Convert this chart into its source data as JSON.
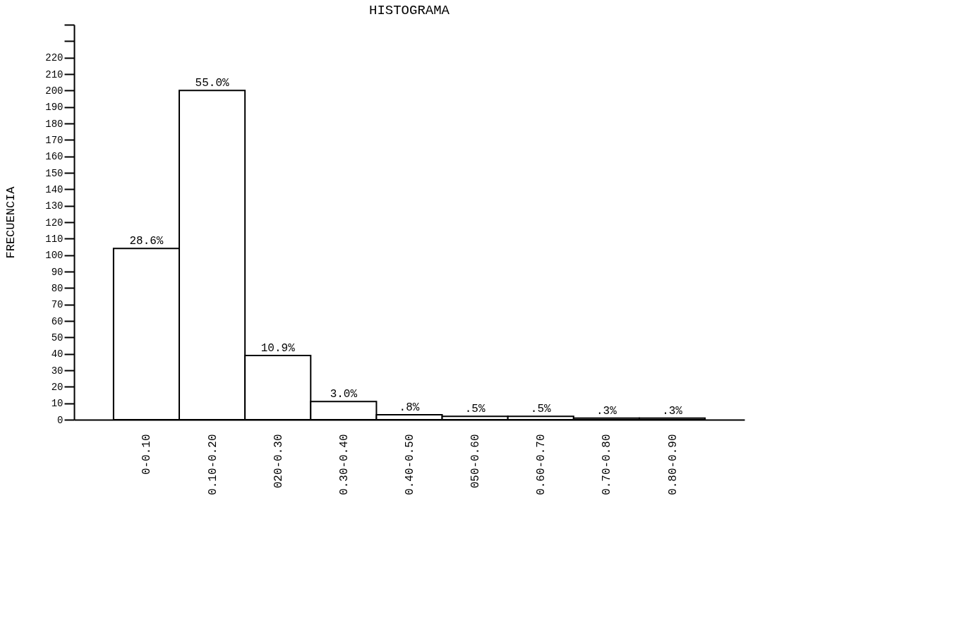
{
  "chart_data": {
    "type": "bar",
    "title": "HISTOGRAMA",
    "ylabel": "FRECUENCIA",
    "categories": [
      "0-0.10",
      "0.10-0.20",
      "020-0.30",
      "0.30-0.40",
      "0.40-0.50",
      "050-0.60",
      "0.60-0.70",
      "0.70-0.80",
      "0.80-0.90"
    ],
    "values": [
      104,
      200,
      39,
      11,
      3,
      2,
      2,
      1,
      1
    ],
    "annotations": [
      {
        "text": "28.6%",
        "x": "0-0.10",
        "y": 104
      },
      {
        "text": "55.0%",
        "x": "0.10-0.20",
        "y": 200
      },
      {
        "text": "10.9%",
        "x": "020-0.30",
        "y": 39
      },
      {
        "text": "3.0%",
        "x": "0.30-0.40",
        "y": 11
      },
      {
        "text": ".8%",
        "x": "0.40-0.50",
        "y": 3
      },
      {
        "text": ".5%",
        "x": "050-0.60",
        "y": 2
      },
      {
        "text": ".5%",
        "x": "0.60-0.70",
        "y": 2
      },
      {
        "text": ".3%",
        "x": "0.70-0.80",
        "y": 1
      },
      {
        "text": ".3%",
        "x": "0.80-0.90",
        "y": 1
      }
    ],
    "color": "#ffffff",
    "ylim": [
      0,
      240
    ],
    "yticks": [
      0,
      10,
      20,
      30,
      40,
      50,
      60,
      70,
      80,
      90,
      100,
      110,
      120,
      130,
      140,
      150,
      160,
      170,
      180,
      190,
      200,
      210,
      220,
      {
        "value": 230,
        "label": null
      },
      {
        "value": 240,
        "label": null
      }
    ],
    "grid": false
  }
}
